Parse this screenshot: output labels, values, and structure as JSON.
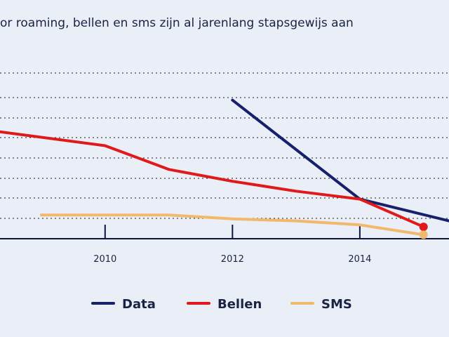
{
  "chart_data": {
    "type": "line",
    "title": "or roaming, bellen en sms zijn al jarenlang stapsgewijs aan",
    "xlabel": "",
    "ylabel": "",
    "x_ticks": [
      2010,
      2012,
      2014
    ],
    "xlim": [
      2008.35,
      2015.4
    ],
    "ylim": [
      0,
      1.0
    ],
    "grid": true,
    "legend_position": "bottom",
    "series": [
      {
        "name": "Data",
        "color": "#16206b",
        "points": [
          [
            2012,
            0.7
          ],
          [
            2014,
            0.2
          ],
          [
            2015.4,
            0.09
          ]
        ]
      },
      {
        "name": "Bellen",
        "color": "#e01a1a",
        "points": [
          [
            2008.35,
            0.54
          ],
          [
            2010,
            0.47
          ],
          [
            2011,
            0.35
          ],
          [
            2012,
            0.29
          ],
          [
            2013,
            0.24
          ],
          [
            2014,
            0.2
          ],
          [
            2015,
            0.06
          ]
        ]
      },
      {
        "name": "SMS",
        "color": "#f0b96b",
        "points": [
          [
            2009,
            0.12
          ],
          [
            2010,
            0.12
          ],
          [
            2011,
            0.12
          ],
          [
            2012,
            0.1
          ],
          [
            2013,
            0.09
          ],
          [
            2014,
            0.07
          ],
          [
            2015,
            0.02
          ]
        ]
      }
    ]
  }
}
